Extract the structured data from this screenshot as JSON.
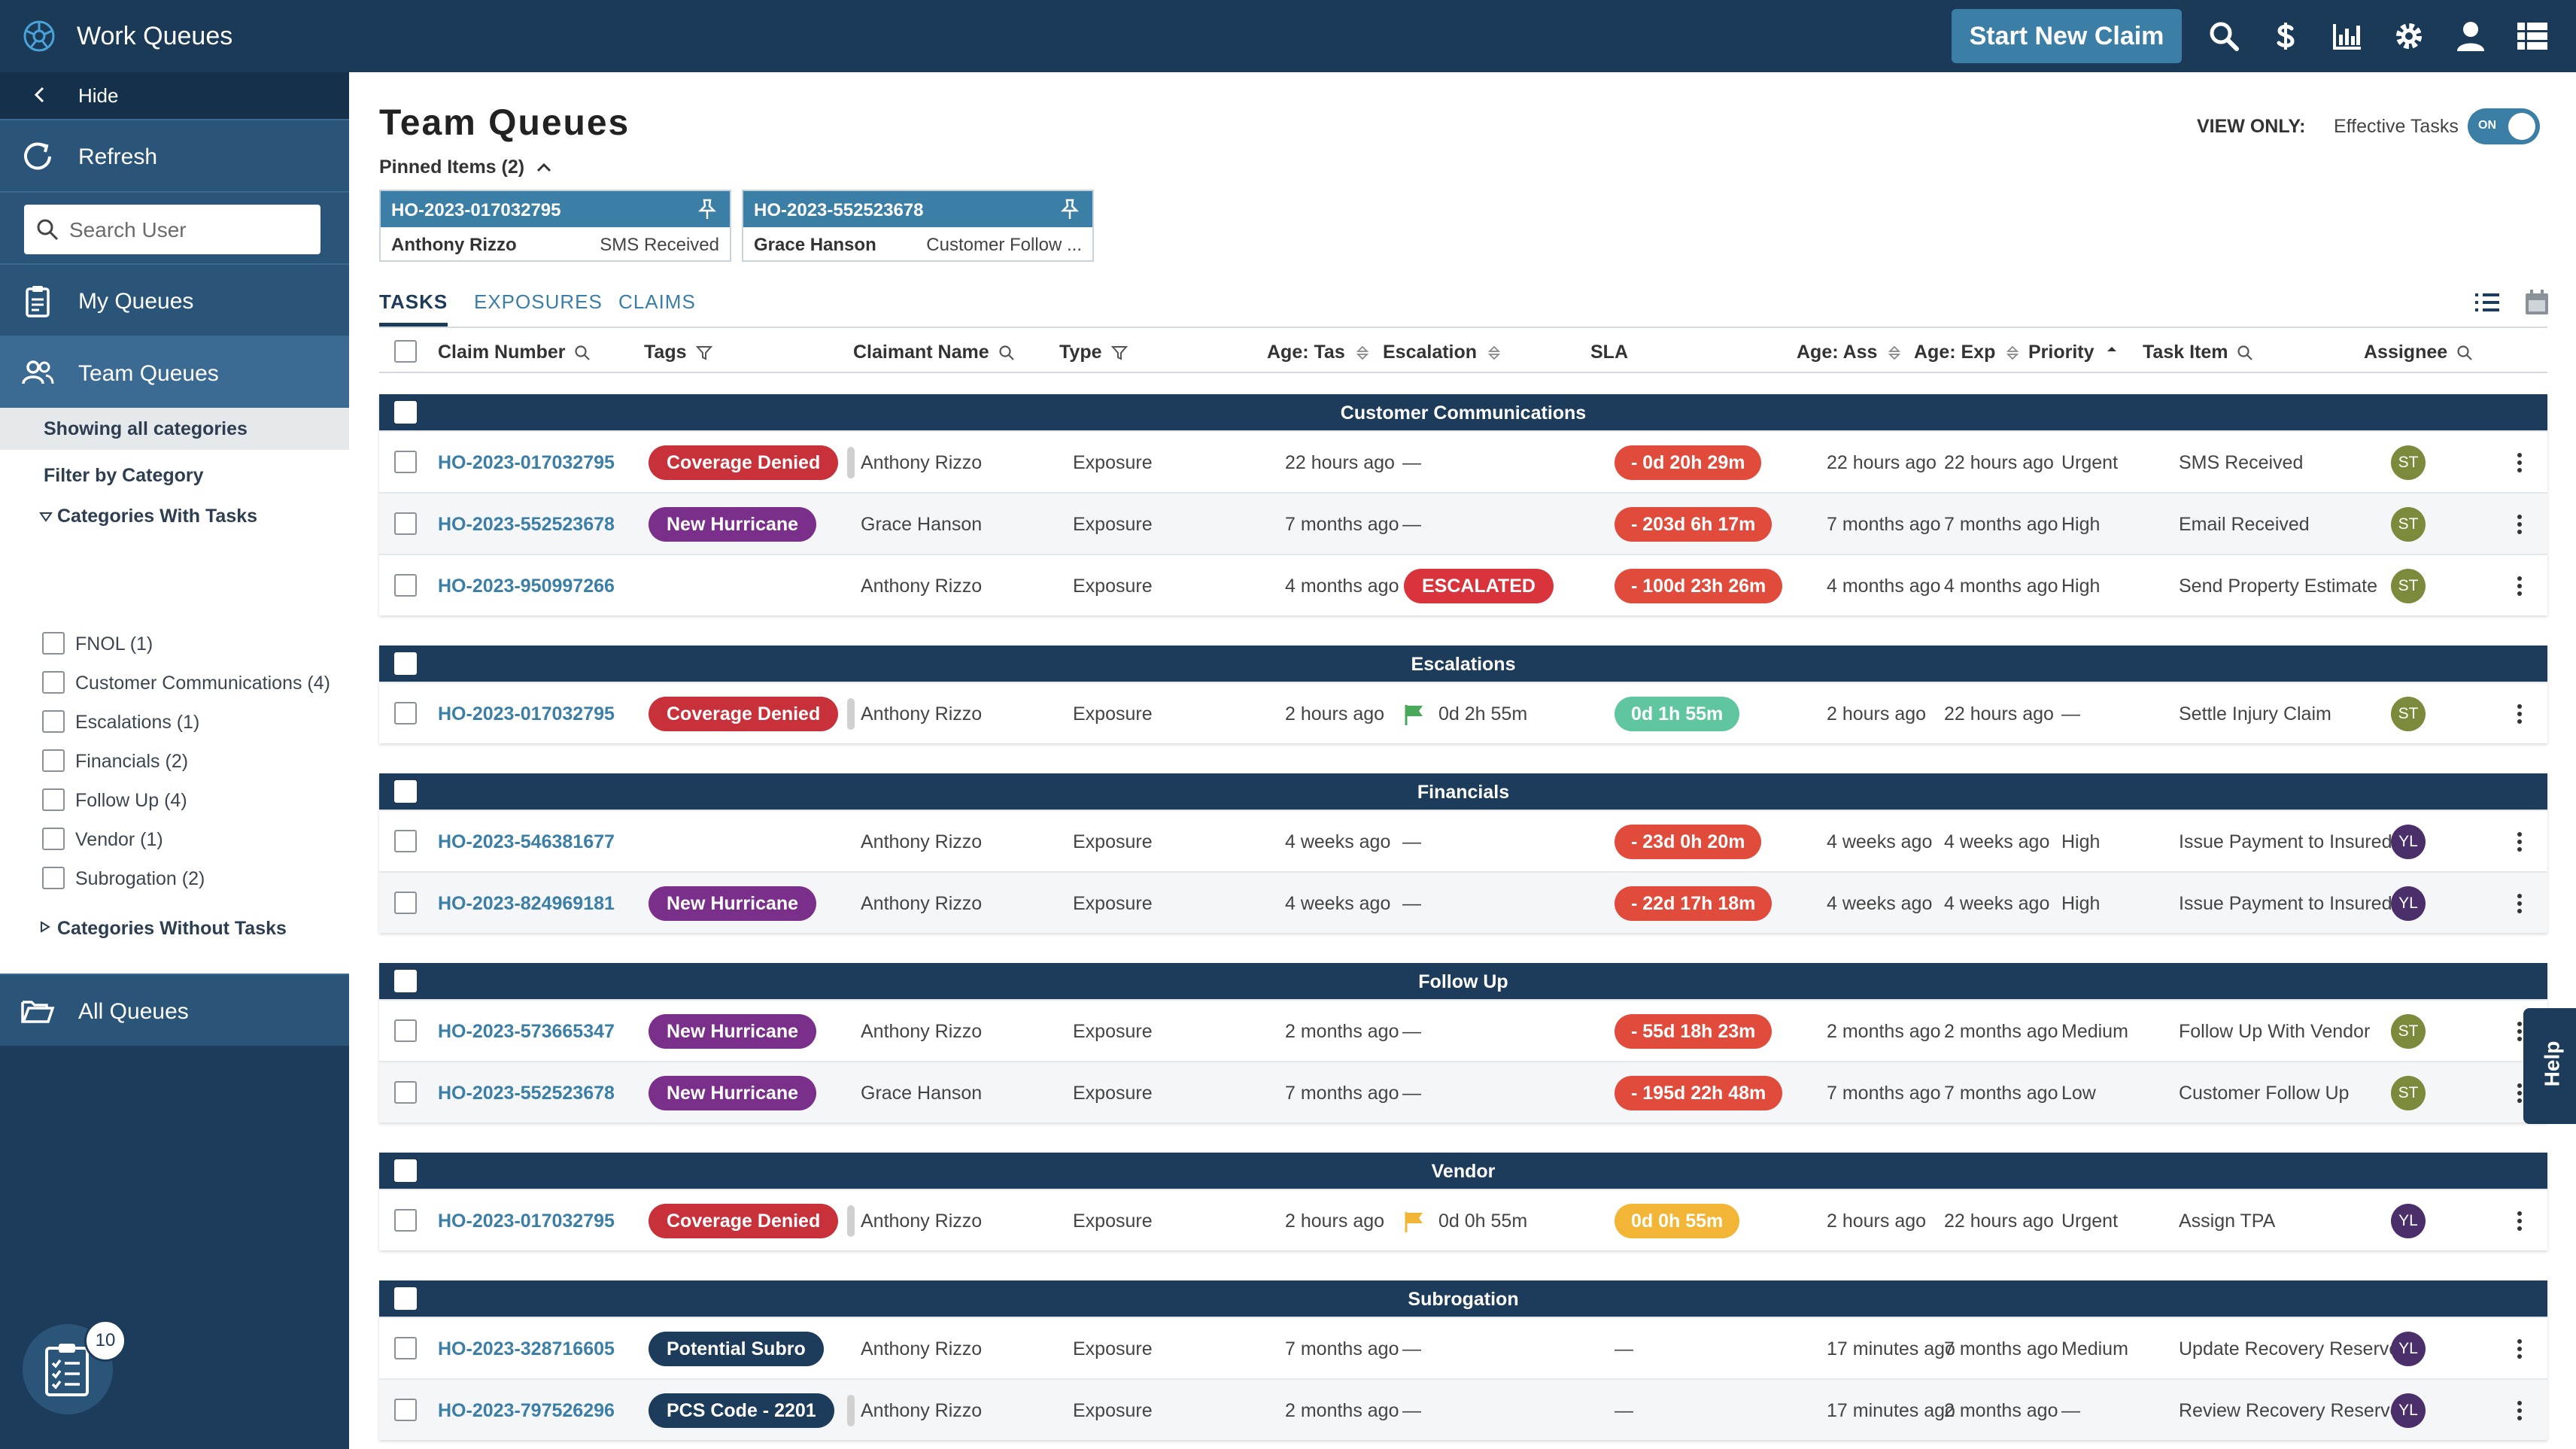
{
  "app": {
    "title": "Work Queues",
    "start_claim": "Start New Claim"
  },
  "sidebar": {
    "hide": "Hide",
    "refresh": "Refresh",
    "search_placeholder": "Search User",
    "my_queues": "My Queues",
    "team_queues": "Team Queues",
    "showing": "Showing all categories",
    "filter_by": "Filter by Category",
    "with_tasks": "Categories With Tasks",
    "categories": [
      "FNOL (1)",
      "Customer Communications (4)",
      "Escalations (1)",
      "Financials (2)",
      "Follow Up (4)",
      "Vendor (1)",
      "Subrogation (2)"
    ],
    "without_tasks": "Categories Without Tasks",
    "all_queues": "All Queues",
    "badge_count": "10"
  },
  "main": {
    "title": "Team Queues",
    "pinned_label": "Pinned Items (2)",
    "view_only": "VIEW ONLY:",
    "effective_tasks": "Effective Tasks",
    "toggle": "ON",
    "pinned": [
      {
        "claim": "HO-2023-017032795",
        "name": "Anthony Rizzo",
        "status": "SMS Received"
      },
      {
        "claim": "HO-2023-552523678",
        "name": "Grace Hanson",
        "status": "Customer Follow ..."
      }
    ],
    "tabs": [
      "TASKS",
      "EXPOSURES",
      "CLAIMS"
    ],
    "columns": [
      "Claim Number",
      "Tags",
      "Claimant Name",
      "Type",
      "Age: Tas",
      "Escalation",
      "SLA",
      "Age: Ass",
      "Age: Exp",
      "Priority",
      "Task Item",
      "Assignee"
    ],
    "help": "Help"
  },
  "groups": [
    {
      "title": "Customer Communications",
      "rows": [
        {
          "claim": "HO-2023-017032795",
          "tag": "Coverage Denied",
          "tag_color": "red",
          "stub": true,
          "name": "Anthony Rizzo",
          "type": "Exposure",
          "age_task": "22 hours ago",
          "esc": "—",
          "esc_kind": "text",
          "sla": "- 0d 20h 29m",
          "sla_color": "red",
          "age_ass": "22 hours ago",
          "age_exp": "22 hours ago",
          "priority": "Urgent",
          "task": "SMS Received",
          "assignee": "ST",
          "av": "olive"
        },
        {
          "claim": "HO-2023-552523678",
          "tag": "New Hurricane",
          "tag_color": "purple",
          "stub": false,
          "name": "Grace Hanson",
          "type": "Exposure",
          "age_task": "7 months ago",
          "esc": "—",
          "esc_kind": "text",
          "sla": "- 203d 6h 17m",
          "sla_color": "red",
          "age_ass": "7 months ago",
          "age_exp": "7 months ago",
          "priority": "High",
          "task": "Email Received",
          "assignee": "ST",
          "av": "olive"
        },
        {
          "claim": "HO-2023-950997266",
          "tag": "",
          "tag_color": "",
          "stub": false,
          "name": "Anthony Rizzo",
          "type": "Exposure",
          "age_task": "4 months ago",
          "esc": "ESCALATED",
          "esc_kind": "badge",
          "sla": "- 100d 23h 26m",
          "sla_color": "red",
          "age_ass": "4 months ago",
          "age_exp": "4 months ago",
          "priority": "High",
          "task": "Send Property Estimate",
          "assignee": "ST",
          "av": "olive"
        }
      ]
    },
    {
      "title": "Escalations",
      "rows": [
        {
          "claim": "HO-2023-017032795",
          "tag": "Coverage Denied",
          "tag_color": "red",
          "stub": true,
          "name": "Anthony Rizzo",
          "type": "Exposure",
          "age_task": "2 hours ago",
          "esc": "0d 2h 55m",
          "esc_kind": "flag-green",
          "sla": "0d 1h 55m",
          "sla_color": "green",
          "age_ass": "2 hours ago",
          "age_exp": "22 hours ago",
          "priority": "—",
          "task": "Settle Injury Claim",
          "assignee": "ST",
          "av": "olive"
        }
      ]
    },
    {
      "title": "Financials",
      "rows": [
        {
          "claim": "HO-2023-546381677",
          "tag": "",
          "tag_color": "",
          "stub": false,
          "name": "Anthony Rizzo",
          "type": "Exposure",
          "age_task": "4 weeks ago",
          "esc": "—",
          "esc_kind": "text",
          "sla": "- 23d 0h 20m",
          "sla_color": "red",
          "age_ass": "4 weeks ago",
          "age_exp": "4 weeks ago",
          "priority": "High",
          "task": "Issue Payment to Insured",
          "assignee": "YL",
          "av": "purple"
        },
        {
          "claim": "HO-2023-824969181",
          "tag": "New Hurricane",
          "tag_color": "purple",
          "stub": false,
          "name": "Anthony Rizzo",
          "type": "Exposure",
          "age_task": "4 weeks ago",
          "esc": "—",
          "esc_kind": "text",
          "sla": "- 22d 17h 18m",
          "sla_color": "red",
          "age_ass": "4 weeks ago",
          "age_exp": "4 weeks ago",
          "priority": "High",
          "task": "Issue Payment to Insured",
          "assignee": "YL",
          "av": "purple"
        }
      ]
    },
    {
      "title": "Follow Up",
      "rows": [
        {
          "claim": "HO-2023-573665347",
          "tag": "New Hurricane",
          "tag_color": "purple",
          "stub": false,
          "name": "Anthony Rizzo",
          "type": "Exposure",
          "age_task": "2 months ago",
          "esc": "—",
          "esc_kind": "text",
          "sla": "- 55d 18h 23m",
          "sla_color": "red",
          "age_ass": "2 months ago",
          "age_exp": "2 months ago",
          "priority": "Medium",
          "task": "Follow Up With Vendor",
          "assignee": "ST",
          "av": "olive"
        },
        {
          "claim": "HO-2023-552523678",
          "tag": "New Hurricane",
          "tag_color": "purple",
          "stub": false,
          "name": "Grace Hanson",
          "type": "Exposure",
          "age_task": "7 months ago",
          "esc": "—",
          "esc_kind": "text",
          "sla": "- 195d 22h 48m",
          "sla_color": "red",
          "age_ass": "7 months ago",
          "age_exp": "7 months ago",
          "priority": "Low",
          "task": "Customer Follow Up",
          "assignee": "ST",
          "av": "olive"
        }
      ]
    },
    {
      "title": "Vendor",
      "rows": [
        {
          "claim": "HO-2023-017032795",
          "tag": "Coverage Denied",
          "tag_color": "red",
          "stub": true,
          "name": "Anthony Rizzo",
          "type": "Exposure",
          "age_task": "2 hours ago",
          "esc": "0d 0h 55m",
          "esc_kind": "flag-amber",
          "sla": "0d 0h 55m",
          "sla_color": "amber",
          "age_ass": "2 hours ago",
          "age_exp": "22 hours ago",
          "priority": "Urgent",
          "task": "Assign TPA",
          "assignee": "YL",
          "av": "purple"
        }
      ]
    },
    {
      "title": "Subrogation",
      "rows": [
        {
          "claim": "HO-2023-328716605",
          "tag": "Potential Subro",
          "tag_color": "navy",
          "stub": false,
          "name": "Anthony Rizzo",
          "type": "Exposure",
          "age_task": "7 months ago",
          "esc": "—",
          "esc_kind": "text",
          "sla": "—",
          "sla_color": "none",
          "age_ass": "17 minutes ago",
          "age_exp": "7 months ago",
          "priority": "Medium",
          "task": "Update Recovery Reserve",
          "assignee": "YL",
          "av": "purple"
        },
        {
          "claim": "HO-2023-797526296",
          "tag": "PCS Code - 2201",
          "tag_color": "navy",
          "stub": true,
          "name": "Anthony Rizzo",
          "type": "Exposure",
          "age_task": "2 months ago",
          "esc": "—",
          "esc_kind": "text",
          "sla": "—",
          "sla_color": "none",
          "age_ass": "17 minutes ago",
          "age_exp": "2 months ago",
          "priority": "—",
          "task": "Review Recovery Reserve",
          "assignee": "YL",
          "av": "purple"
        }
      ]
    }
  ]
}
